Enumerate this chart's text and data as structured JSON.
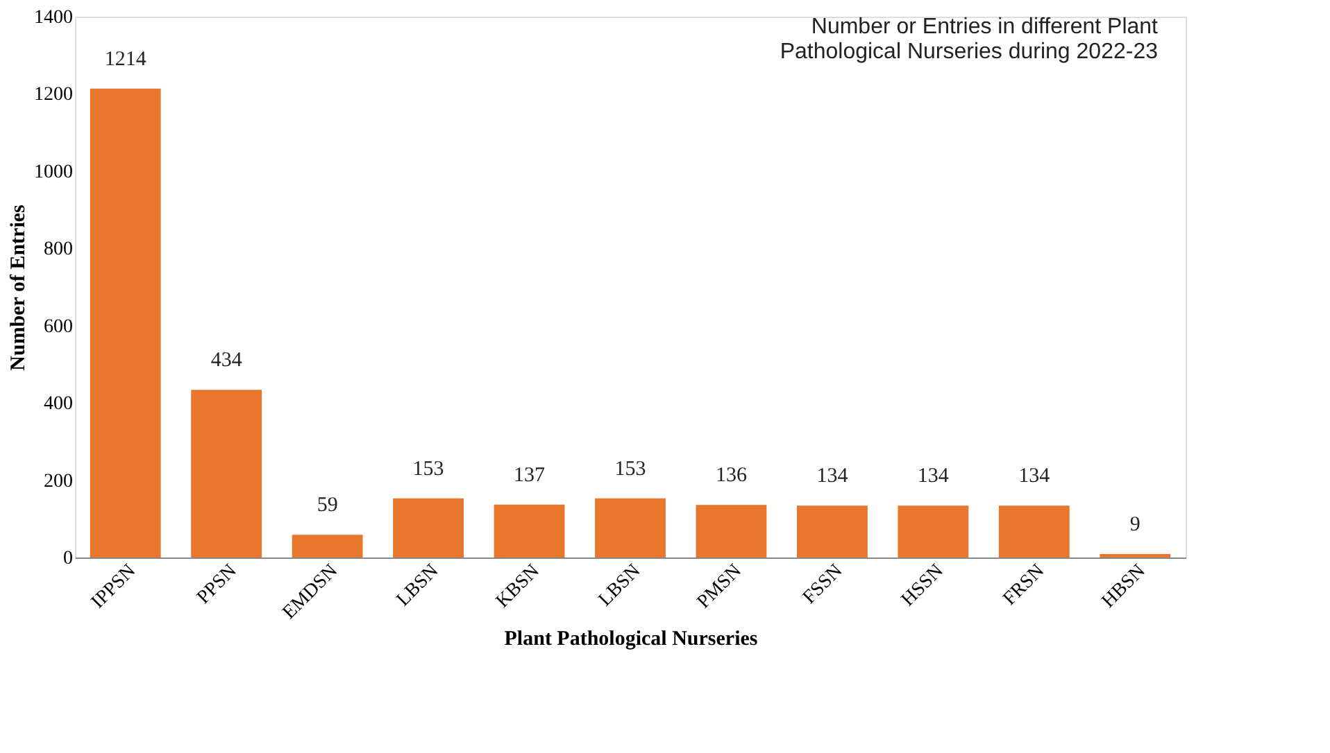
{
  "chart_data": {
    "type": "bar",
    "title": "Number or Entries in different Plant Pathological Nurseries during 2022-23",
    "xlabel": "Plant Pathological Nurseries",
    "ylabel": "Number of Entries",
    "categories": [
      "IPPSN",
      "PPSN",
      "EMDSN",
      "LBSN",
      "KBSN",
      "LBSN",
      "PMSN",
      "FSSN",
      "HSSN",
      "FRSN",
      "HBSN"
    ],
    "values": [
      1214,
      434,
      59,
      153,
      137,
      153,
      136,
      134,
      134,
      134,
      9
    ],
    "color": "#e8762c",
    "ylim": [
      0,
      1400
    ],
    "yticks": [
      0,
      200,
      400,
      600,
      800,
      1000,
      1200,
      1400
    ],
    "data_labels": true,
    "grid": false
  }
}
